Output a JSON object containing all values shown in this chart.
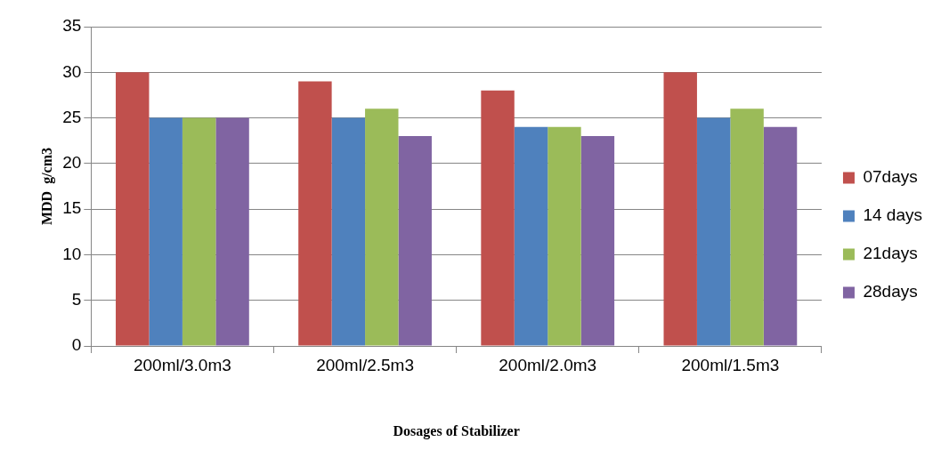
{
  "chart_data": {
    "type": "bar",
    "xlabel": "Dosages of Stabilizer",
    "ylabel": "MDD  g/cm3",
    "categories": [
      "200ml/3.0m3",
      "200ml/2.5m3",
      "200ml/2.0m3",
      "200ml/1.5m3"
    ],
    "series": [
      {
        "name": "07days",
        "color": "#c0504d",
        "values": [
          30,
          29,
          28,
          30
        ]
      },
      {
        "name": "14 days",
        "color": "#4f81bd",
        "values": [
          25,
          25,
          24,
          25
        ]
      },
      {
        "name": "21days",
        "color": "#9bbb59",
        "values": [
          25,
          26,
          24,
          26
        ]
      },
      {
        "name": "28days",
        "color": "#8064a2",
        "values": [
          25,
          23,
          23,
          24
        ]
      }
    ],
    "ylim": [
      0,
      35
    ],
    "yticks": [
      0,
      5,
      10,
      15,
      20,
      25,
      30,
      35
    ],
    "grid": "y",
    "legend": "right"
  }
}
